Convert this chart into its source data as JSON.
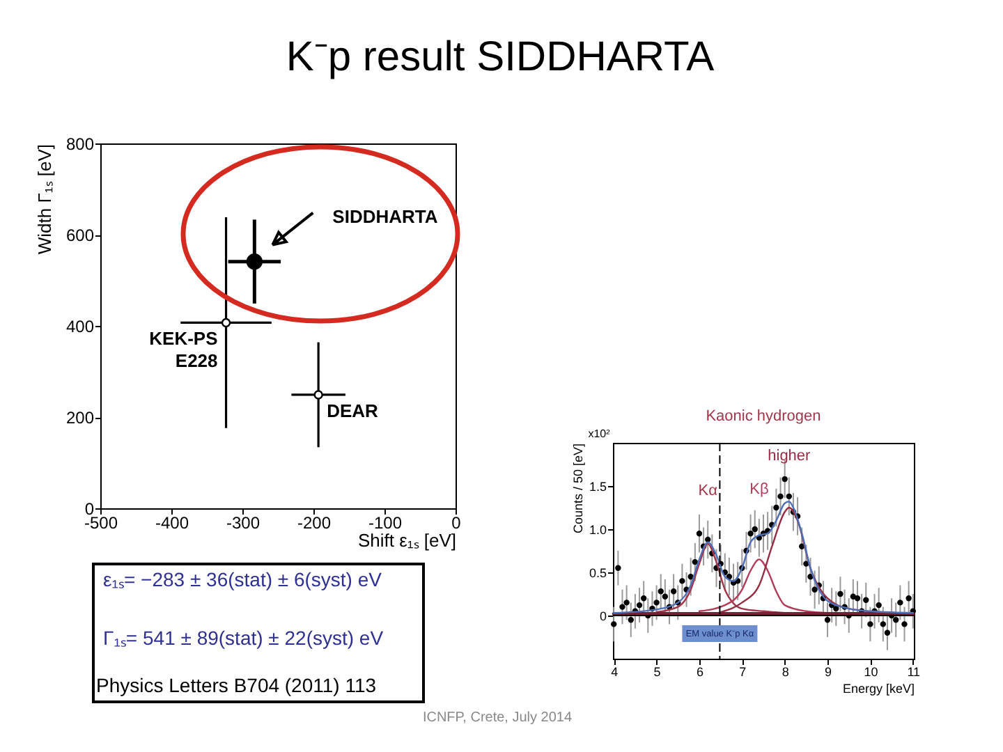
{
  "chart_data": [
    {
      "type": "scatter",
      "title": "K⁻p result SIDDHARTA",
      "xlabel": "Shift ε₁ₛ [eV]",
      "ylabel": "Width Γ₁ₛ [eV]",
      "xlim": [
        -500,
        0
      ],
      "ylim": [
        0,
        800
      ],
      "xticks": [
        -500,
        -400,
        -300,
        -200,
        -100,
        0
      ],
      "yticks": [
        0,
        200,
        400,
        600,
        800
      ],
      "marker": "circle",
      "series": [
        {
          "name": "SIDDHARTA",
          "color": "#000000",
          "x": [
            -283
          ],
          "values": [
            541
          ],
          "errors": [
            92
          ],
          "xerrors": [
            37
          ]
        },
        {
          "name": "KEK-PS E228",
          "color": "#000000",
          "x": [
            -323
          ],
          "values": [
            407
          ],
          "errors": [
            231
          ],
          "xerrors": [
            64
          ]
        },
        {
          "name": "DEAR",
          "color": "#000000",
          "x": [
            -193
          ],
          "values": [
            249
          ],
          "errors": [
            115
          ],
          "xerrors": [
            38
          ]
        }
      ],
      "annotations": [
        "ε₁ₛ= −283 ± 36(stat) ± 6(syst) eV",
        "Γ₁ₛ= 541 ± 89(stat) ± 22(syst) eV",
        "Physics Letters B704 (2011) 113",
        "ICNFP, Crete, July 2014"
      ]
    },
    {
      "type": "scatter",
      "title": "Kaonic hydrogen",
      "xlabel": "Energy [keV]",
      "ylabel": "Counts / 50 [eV]",
      "xlim": [
        3.98,
        11.02
      ],
      "ylim": [
        -0.5,
        2.0
      ],
      "xticks": [
        4,
        5,
        6,
        7,
        8,
        9,
        10,
        11
      ],
      "yticks": [
        0,
        0.5,
        {
          "value": 1,
          "label": "1.0"
        },
        1.5
      ],
      "annotations": [
        "x10²"
      ],
      "ref_lines": [
        {
          "axis": "x",
          "value": 6.48,
          "label": "EM value K⁻p Kα",
          "line_style": "dashed",
          "color": "#000000"
        },
        {
          "axis": "y",
          "value": 0,
          "color": "#000000"
        }
      ],
      "series": [
        {
          "type": "scatter",
          "color": "#000000",
          "marker": "circle",
          "x": [
            4.0,
            4.1,
            4.2,
            4.3,
            4.4,
            4.5,
            4.6,
            4.7,
            4.8,
            4.9,
            5.0,
            5.1,
            5.2,
            5.3,
            5.4,
            5.5,
            5.6,
            5.7,
            5.8,
            5.9,
            6.0,
            6.1,
            6.2,
            6.3,
            6.4,
            6.5,
            6.6,
            6.7,
            6.8,
            6.9,
            7.0,
            7.1,
            7.2,
            7.3,
            7.4,
            7.5,
            7.6,
            7.7,
            7.8,
            7.9,
            8.0,
            8.1,
            8.2,
            8.3,
            8.4,
            8.5,
            8.6,
            8.7,
            8.8,
            8.9,
            9.0,
            9.1,
            9.2,
            9.3,
            9.4,
            9.5,
            9.6,
            9.7,
            9.8,
            9.9,
            10.0,
            10.1,
            10.2,
            10.3,
            10.4,
            10.5,
            10.6,
            10.7,
            10.8,
            10.9,
            11.0
          ],
          "values": [
            -0.1,
            0.55,
            0.1,
            0.15,
            -0.05,
            0.05,
            0.12,
            0.2,
            0.0,
            0.08,
            0.15,
            0.28,
            0.22,
            0.1,
            0.28,
            0.15,
            0.4,
            0.3,
            0.45,
            0.62,
            0.95,
            0.8,
            0.88,
            0.72,
            0.55,
            0.6,
            0.5,
            0.45,
            0.38,
            0.4,
            0.55,
            0.75,
            0.95,
            1.0,
            0.9,
            0.95,
            0.98,
            1.05,
            1.25,
            1.38,
            1.58,
            1.38,
            1.2,
            1.15,
            0.8,
            0.6,
            0.45,
            0.3,
            0.35,
            0.2,
            -0.05,
            0.12,
            0.08,
            0.25,
            0.1,
            0.0,
            0.22,
            0.2,
            0.05,
            0.18,
            -0.1,
            0.05,
            0.12,
            -0.1,
            -0.2,
            0.0,
            -0.05,
            0.15,
            -0.1,
            0.2,
            0.05
          ],
          "errors": [
            0.2,
            0.2,
            0.2,
            0.2,
            0.2,
            0.2,
            0.2,
            0.2,
            0.2,
            0.2,
            0.2,
            0.2,
            0.2,
            0.2,
            0.2,
            0.2,
            0.2,
            0.2,
            0.22,
            0.22,
            0.22,
            0.22,
            0.22,
            0.22,
            0.22,
            0.22,
            0.22,
            0.22,
            0.22,
            0.22,
            0.22,
            0.22,
            0.22,
            0.22,
            0.22,
            0.22,
            0.22,
            0.22,
            0.22,
            0.22,
            0.22,
            0.22,
            0.22,
            0.22,
            0.22,
            0.22,
            0.22,
            0.22,
            0.22,
            0.2,
            0.2,
            0.2,
            0.2,
            0.2,
            0.2,
            0.2,
            0.2,
            0.2,
            0.2,
            0.2,
            0.2,
            0.2,
            0.2,
            0.2,
            0.2,
            0.2,
            0.2,
            0.2,
            0.2,
            0.2,
            0.2
          ]
        },
        {
          "type": "line",
          "name": "Kα",
          "color": "#a3354b",
          "x": [
            5,
            5.5,
            5.8,
            6.0,
            6.2,
            6.4,
            6.6,
            6.8,
            7.0,
            7.5,
            8.0
          ],
          "values": [
            0.04,
            0.1,
            0.3,
            0.6,
            0.83,
            0.62,
            0.3,
            0.14,
            0.08,
            0.05,
            0.03
          ]
        },
        {
          "type": "line",
          "name": "Kβ",
          "color": "#b23c58",
          "x": [
            6,
            6.6,
            7,
            7.2,
            7.4,
            7.6,
            7.8,
            8,
            8.5,
            9
          ],
          "values": [
            0.05,
            0.12,
            0.3,
            0.52,
            0.65,
            0.52,
            0.28,
            0.12,
            0.05,
            0.03
          ]
        },
        {
          "type": "line",
          "name": "higher",
          "color": "#942d42",
          "x": [
            6.5,
            7,
            7.4,
            7.7,
            8,
            8.1,
            8.3,
            8.6,
            9,
            9.5,
            10.5
          ],
          "values": [
            0.04,
            0.15,
            0.35,
            0.8,
            1.2,
            1.25,
            1.1,
            0.55,
            0.2,
            0.08,
            0.03
          ]
        },
        {
          "type": "line",
          "color": "#7a1f33",
          "x": [
            4,
            11
          ],
          "values": [
            0.02,
            0.02
          ]
        },
        {
          "type": "line",
          "color": "#4f6fb8",
          "x": [
            4,
            5,
            5.5,
            5.8,
            6,
            6.2,
            6.4,
            6.6,
            6.8,
            7,
            7.2,
            7.4,
            7.6,
            7.8,
            8,
            8.1,
            8.2,
            8.4,
            8.6,
            8.8,
            9,
            9.5,
            10,
            11
          ],
          "values": [
            0.03,
            0.07,
            0.15,
            0.35,
            0.65,
            0.85,
            0.7,
            0.45,
            0.4,
            0.55,
            0.85,
            0.93,
            0.95,
            1.1,
            1.3,
            1.32,
            1.25,
            0.95,
            0.55,
            0.3,
            0.17,
            0.08,
            0.05,
            0.03
          ]
        }
      ]
    }
  ]
}
